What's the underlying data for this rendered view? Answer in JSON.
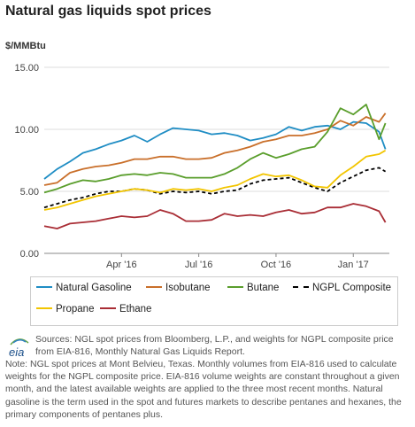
{
  "title": "Natural gas liquids spot prices",
  "unit_label": "$/MMBtu",
  "chart_data": {
    "type": "line",
    "title": "Natural gas liquids spot prices",
    "ylabel": "$/MMBtu",
    "ylim": [
      0,
      15
    ],
    "y_ticks": [
      "0.00",
      "5.00",
      "10.00",
      "15.00"
    ],
    "x_ticks": [
      "Apr '16",
      "Jul '16",
      "Oct '16",
      "Jan '17"
    ],
    "grid": true,
    "legend_position": "bottom",
    "x_months": [
      0,
      0.5,
      1,
      1.5,
      2,
      2.5,
      3,
      3.5,
      4,
      4.5,
      5,
      5.5,
      6,
      6.5,
      7,
      7.5,
      8,
      8.5,
      9,
      9.5,
      10,
      10.5,
      11,
      11.5,
      12,
      12.5,
      13,
      13.25
    ],
    "x_month_origin": "Jan '16",
    "series": [
      {
        "name": "Natural Gasoline",
        "color": "#1f8dc4",
        "dashed": false,
        "values": [
          6.0,
          6.8,
          7.4,
          8.1,
          8.4,
          8.8,
          9.1,
          9.5,
          9.0,
          9.6,
          10.1,
          10.0,
          9.9,
          9.6,
          9.7,
          9.5,
          9.1,
          9.3,
          9.6,
          10.2,
          9.9,
          10.2,
          10.3,
          10.0,
          10.6,
          10.5,
          9.8,
          8.4
        ]
      },
      {
        "name": "Isobutane",
        "color": "#c96f2a",
        "dashed": false,
        "values": [
          5.5,
          5.7,
          6.5,
          6.8,
          7.0,
          7.1,
          7.3,
          7.6,
          7.6,
          7.8,
          7.8,
          7.6,
          7.6,
          7.7,
          8.1,
          8.3,
          8.6,
          9.0,
          9.2,
          9.5,
          9.5,
          9.7,
          10.0,
          10.7,
          10.3,
          11.0,
          10.6,
          11.3
        ]
      },
      {
        "name": "Butane",
        "color": "#5a9e2c",
        "dashed": false,
        "values": [
          4.9,
          5.2,
          5.6,
          5.9,
          5.8,
          6.0,
          6.3,
          6.4,
          6.3,
          6.5,
          6.4,
          6.1,
          6.1,
          6.1,
          6.4,
          6.9,
          7.6,
          8.1,
          7.7,
          8.0,
          8.4,
          8.6,
          9.8,
          11.7,
          11.2,
          12.0,
          9.2,
          10.5
        ]
      },
      {
        "name": "NGPL Composite",
        "color": "#000000",
        "dashed": true,
        "values": [
          3.7,
          4.0,
          4.3,
          4.5,
          4.8,
          5.0,
          5.0,
          5.2,
          5.1,
          4.8,
          5.0,
          4.9,
          5.0,
          4.8,
          5.0,
          5.1,
          5.6,
          5.9,
          6.0,
          6.1,
          5.7,
          5.3,
          5.0,
          5.7,
          6.2,
          6.7,
          6.9,
          6.6
        ]
      },
      {
        "name": "Propane",
        "color": "#f2c500",
        "dashed": false,
        "values": [
          3.5,
          3.7,
          4.0,
          4.3,
          4.6,
          4.8,
          5.0,
          5.2,
          5.1,
          4.9,
          5.2,
          5.1,
          5.2,
          5.0,
          5.3,
          5.5,
          6.0,
          6.4,
          6.2,
          6.3,
          5.9,
          5.4,
          5.3,
          6.3,
          7.0,
          7.8,
          8.0,
          8.3
        ]
      },
      {
        "name": "Ethane",
        "color": "#a92d35",
        "dashed": false,
        "values": [
          2.2,
          2.0,
          2.4,
          2.5,
          2.6,
          2.8,
          3.0,
          2.9,
          3.0,
          3.5,
          3.2,
          2.6,
          2.6,
          2.7,
          3.2,
          3.0,
          3.1,
          3.0,
          3.3,
          3.5,
          3.2,
          3.3,
          3.7,
          3.7,
          4.0,
          3.8,
          3.4,
          2.5
        ]
      }
    ]
  },
  "legend": [
    {
      "label": "Natural Gasoline",
      "color": "#1f8dc4",
      "dashed": false
    },
    {
      "label": "Isobutane",
      "color": "#c96f2a",
      "dashed": false
    },
    {
      "label": "Butane",
      "color": "#5a9e2c",
      "dashed": false
    },
    {
      "label": "NGPL Composite",
      "color": "#000000",
      "dashed": true
    },
    {
      "label": "Propane",
      "color": "#f2c500",
      "dashed": false
    },
    {
      "label": "Ethane",
      "color": "#a92d35",
      "dashed": false
    }
  ],
  "logo_text": "eia",
  "sources": "Sources: NGL spot prices from Bloomberg, L.P., and weights for NGPL composite price from EIA-816, Monthly Natural Gas Liquids Report.",
  "note": "Note: NGL spot prices at Mont Belvieu, Texas. Monthly volumes from EIA-816 used to calculate weights for the NGPL composite price. EIA-816 volume weights are constant throughout a given month, and the latest available weights are applied to the three most recent months. Natural gasoline is the term used in the spot and futures markets to describe pentanes and hexanes, the primary components of pentanes plus."
}
